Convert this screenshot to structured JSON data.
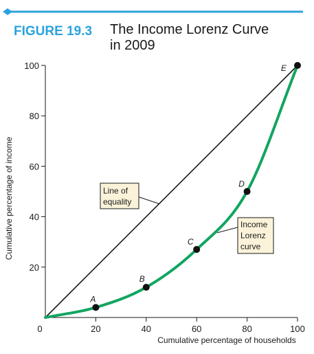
{
  "figure": {
    "label": "FIGURE 19.3",
    "title_line1": "The Income Lorenz Curve",
    "title_line2": "in 2009"
  },
  "colors": {
    "accent": "#2aa3dd",
    "curve": "#12a561",
    "box_fill": "#fbf3d9",
    "ink": "#1a1a1a"
  },
  "chart_data": {
    "type": "line",
    "xlabel": "Cumulative percentage of households",
    "ylabel": "Cumulative percentage of income",
    "xlim": [
      0,
      100
    ],
    "ylim": [
      0,
      100
    ],
    "x_ticks": [
      0,
      20,
      40,
      60,
      80,
      100
    ],
    "y_ticks": [
      20,
      40,
      60,
      80,
      100
    ],
    "series": [
      {
        "values": [
          {
            "x": 0,
            "y": 0
          },
          {
            "x": 100,
            "y": 100
          }
        ]
      },
      {
        "values": [
          {
            "x": 0,
            "y": 0
          },
          {
            "x": 20,
            "y": 4
          },
          {
            "x": 40,
            "y": 12
          },
          {
            "x": 60,
            "y": 27
          },
          {
            "x": 80,
            "y": 50
          },
          {
            "x": 100,
            "y": 100
          }
        ]
      }
    ],
    "points": [
      {
        "label": "A",
        "x": 20,
        "y": 4
      },
      {
        "label": "B",
        "x": 40,
        "y": 12
      },
      {
        "label": "C",
        "x": 60,
        "y": 27
      },
      {
        "label": "D",
        "x": 80,
        "y": 50
      },
      {
        "label": "E",
        "x": 100,
        "y": 100
      }
    ],
    "annotations": {
      "equality": [
        "Line of",
        "equality"
      ],
      "lorenz": [
        "Income",
        "Lorenz",
        "curve"
      ]
    }
  }
}
